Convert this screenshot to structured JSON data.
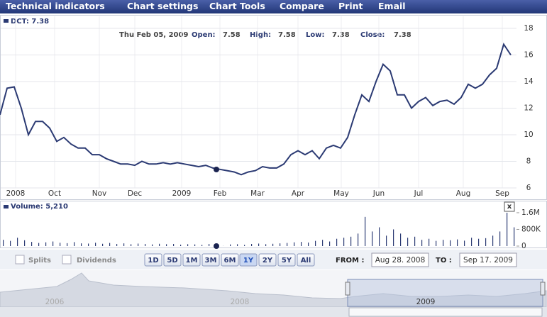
{
  "menu": [
    "Technical indicators",
    "Chart settings",
    "Chart Tools",
    "Compare",
    "Print",
    "Email"
  ],
  "tooltip": {
    "date": "Thu Feb 05, 2009",
    "fields": [
      {
        "label": "Open:",
        "value": "7.58"
      },
      {
        "label": "High:",
        "value": "7.58"
      },
      {
        "label": "Low:",
        "value": "7.38"
      },
      {
        "label": "Close:",
        "value": "7.38"
      }
    ]
  },
  "chart_data": [
    {
      "type": "line",
      "legend": "DCT: 7.38",
      "color": "#2b3a73",
      "ylim": [
        6,
        18
      ],
      "yticks": [
        6,
        8,
        10,
        12,
        14,
        16,
        18
      ],
      "grid": true,
      "xtick_labels": [
        "2008",
        "Oct",
        "Nov",
        "Dec",
        "2009",
        "Feb",
        "Mar",
        "Apr",
        "May",
        "Jun",
        "Jul",
        "Aug",
        "Sep"
      ],
      "values": [
        11.5,
        13.5,
        13.6,
        12,
        10,
        11,
        11,
        10.5,
        9.5,
        9.8,
        9.3,
        9,
        9,
        8.5,
        8.5,
        8.2,
        8,
        7.8,
        7.8,
        7.7,
        8,
        7.8,
        7.8,
        7.9,
        7.8,
        7.9,
        7.8,
        7.7,
        7.6,
        7.7,
        7.5,
        7.4,
        7.3,
        7.2,
        7,
        7.2,
        7.3,
        7.6,
        7.5,
        7.5,
        7.8,
        8.5,
        8.8,
        8.5,
        8.8,
        8.2,
        9,
        9.2,
        9,
        9.8,
        11.5,
        13,
        12.5,
        14,
        15.3,
        14.8,
        13,
        13,
        12,
        12.5,
        12.8,
        12.2,
        12.5,
        12.6,
        12.3,
        12.8,
        13.8,
        13.5,
        13.8,
        14.5,
        15,
        16.8,
        16
      ]
    },
    {
      "type": "bar",
      "legend": "Volume: 5,210",
      "color": "#2b3a73",
      "ylim": [
        0,
        1700000
      ],
      "yticks": [
        0,
        {
          "value": 800000,
          "label": "800K"
        },
        {
          "value": 1600000,
          "label": "1.6M"
        }
      ],
      "values": [
        300000,
        250000,
        400000,
        280000,
        200000,
        150000,
        180000,
        220000,
        160000,
        140000,
        190000,
        130000,
        120000,
        160000,
        110000,
        150000,
        100000,
        130000,
        90000,
        120000,
        100000,
        80000,
        110000,
        90000,
        100000,
        70000,
        90000,
        80000,
        60000,
        100000,
        70000,
        5210,
        80000,
        90000,
        60000,
        100000,
        120000,
        90000,
        110000,
        130000,
        150000,
        180000,
        200000,
        170000,
        250000,
        300000,
        220000,
        350000,
        400000,
        450000,
        600000,
        1400000,
        700000,
        900000,
        500000,
        800000,
        600000,
        400000,
        450000,
        300000,
        350000,
        250000,
        300000,
        280000,
        320000,
        260000,
        400000,
        350000,
        380000,
        500000,
        700000,
        1600000,
        900000
      ]
    }
  ],
  "options": {
    "splits": "Splits",
    "dividends": "Dividends"
  },
  "ranges": [
    "1D",
    "5D",
    "1M",
    "3M",
    "6M",
    "1Y",
    "2Y",
    "5Y",
    "All"
  ],
  "selected_range": "1Y",
  "from": {
    "label": "FROM :",
    "value": "Aug 28. 2008"
  },
  "to": {
    "label": "TO :",
    "value": "Sep 17. 2009"
  },
  "navigator_labels": [
    "2006",
    "2008",
    "2009"
  ],
  "close_button": "x"
}
